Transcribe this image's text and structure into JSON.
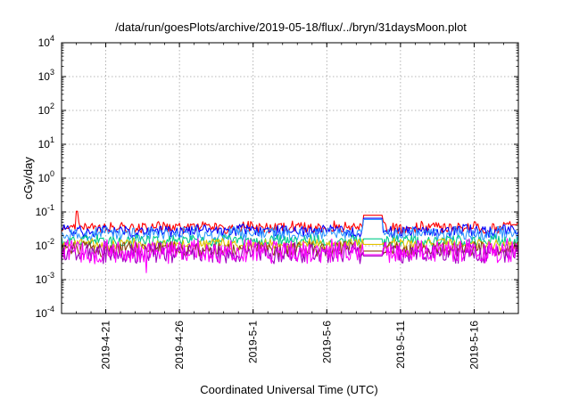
{
  "chart_data": {
    "type": "line",
    "title": "/data/run/goesPlots/archive/2019-05-18/flux/../bryn/31daysMoon.plot",
    "xlabel": "Coordinated Universal Time (UTC)",
    "ylabel": "cGy/day",
    "yscale": "log",
    "ylim": [
      0.0001,
      10000
    ],
    "xlim": [
      "2019-04-18",
      "2019-05-19"
    ],
    "grid": true,
    "y_ticks": [
      {
        "base": "10",
        "exp": "-4"
      },
      {
        "base": "10",
        "exp": "-3"
      },
      {
        "base": "10",
        "exp": "-2"
      },
      {
        "base": "10",
        "exp": "-1"
      },
      {
        "base": "10",
        "exp": "0"
      },
      {
        "base": "10",
        "exp": "1"
      },
      {
        "base": "10",
        "exp": "2"
      },
      {
        "base": "10",
        "exp": "3"
      },
      {
        "base": "10",
        "exp": "4"
      }
    ],
    "x_ticks": [
      {
        "date": "2019-04-21",
        "label": "2019-4-21"
      },
      {
        "date": "2019-04-26",
        "label": "2019-4-26"
      },
      {
        "date": "2019-05-01",
        "label": "2019-5-1"
      },
      {
        "date": "2019-05-06",
        "label": "2019-5-6"
      },
      {
        "date": "2019-05-11",
        "label": "2019-5-11"
      },
      {
        "date": "2019-05-16",
        "label": "2019-5-16"
      }
    ],
    "series": [
      {
        "color": "#ff0000",
        "base": 0.035,
        "noise": 0.16,
        "spike": 0.105,
        "events": [
          {
            "from": "2019-05-08T12:00",
            "to": "2019-05-09T18:00",
            "value": 0.08
          }
        ]
      },
      {
        "color": "#0000ff",
        "base": 0.028,
        "noise": 0.17,
        "events": [
          {
            "from": "2019-05-08T12:00",
            "to": "2019-05-09T18:00",
            "value": 0.065
          }
        ]
      },
      {
        "color": "#3399ff",
        "base": 0.022,
        "noise": 0.2,
        "events": [
          {
            "from": "2019-05-08T12:00",
            "to": "2019-05-09T18:00",
            "value": 0.06
          }
        ]
      },
      {
        "color": "#00cc88",
        "base": 0.014,
        "noise": 0.16,
        "events": [
          {
            "from": "2019-05-08T12:00",
            "to": "2019-05-09T18:00",
            "value": 0.016
          }
        ]
      },
      {
        "color": "#e6c300",
        "base": 0.011,
        "noise": 0.15,
        "events": [
          {
            "from": "2019-05-08T12:00",
            "to": "2019-05-09T18:00",
            "value": 0.011
          }
        ]
      },
      {
        "color": "#8b4513",
        "base": 0.008,
        "noise": 0.2,
        "events": [
          {
            "from": "2019-05-08T12:00",
            "to": "2019-05-09T18:00",
            "value": 0.007
          }
        ]
      },
      {
        "color": "#a000c0",
        "base": 0.006,
        "noise": 0.3,
        "events": [
          {
            "from": "2019-05-08T12:00",
            "to": "2019-05-09T18:00",
            "value": 0.005
          }
        ]
      },
      {
        "color": "#ff00ff",
        "base": 0.0068,
        "noise": 0.35,
        "dip": {
          "date": "2019-04-23T18:00",
          "value": 0.0016
        },
        "events": [
          {
            "from": "2019-05-08T12:00",
            "to": "2019-05-09T18:00",
            "value": 0.0055
          }
        ]
      }
    ]
  }
}
